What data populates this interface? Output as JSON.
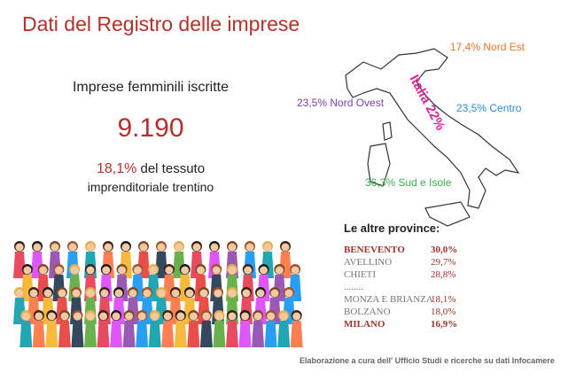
{
  "title": "Dati del Registro delle imprese",
  "headline": "Imprese femminili iscritte",
  "count": "9.190",
  "share": {
    "value": "18,1%",
    "line1": "del tessuto",
    "line2": "imprenditoriale trentino"
  },
  "map": {
    "italy": "Italia 22%",
    "regions": [
      {
        "label": "17,4% Nord Est",
        "color": "#e8772e"
      },
      {
        "label": "23,5% Nord Ovest",
        "color": "#7a3fb0"
      },
      {
        "label": "23,5% Centro",
        "color": "#2d8ad6"
      },
      {
        "label": "36,3% Sud e Isole",
        "color": "#3fae49"
      }
    ]
  },
  "provinces": {
    "title": "Le altre province:",
    "rows": [
      {
        "name": "BENEVENTO",
        "value": "30,0%",
        "bold": true
      },
      {
        "name": "AVELLINO",
        "value": "29,7%"
      },
      {
        "name": "CHIETI",
        "value": "28,8%"
      },
      {
        "name": "........"
      },
      {
        "name": "MONZA E BRIANZA",
        "value": "18,1%"
      },
      {
        "name": "BOLZANO",
        "value": "18,0%"
      },
      {
        "name": "MILANO",
        "value": "16,9%",
        "bold": true
      }
    ]
  },
  "footer": "Elaborazione a cura dell' Ufficio Studi e ricerche su dati Infocamere"
}
